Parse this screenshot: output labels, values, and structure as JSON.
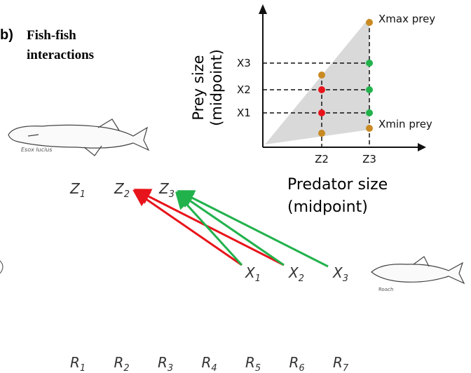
{
  "panel": {
    "label": "b)",
    "title_lines": [
      "Fish-fish",
      "interactions"
    ]
  },
  "species": {
    "predator": "Esox lucius",
    "prey": "Roach"
  },
  "predator_nodes": [
    {
      "symbol": "Z",
      "sub": "1"
    },
    {
      "symbol": "Z",
      "sub": "2"
    },
    {
      "symbol": "Z",
      "sub": "3"
    }
  ],
  "prey_nodes": [
    {
      "symbol": "X",
      "sub": "1"
    },
    {
      "symbol": "X",
      "sub": "2"
    },
    {
      "symbol": "X",
      "sub": "3"
    }
  ],
  "resource_nodes": [
    {
      "symbol": "R",
      "sub": "1"
    },
    {
      "symbol": "R",
      "sub": "2"
    },
    {
      "symbol": "R",
      "sub": "3"
    },
    {
      "symbol": "R",
      "sub": "4"
    },
    {
      "symbol": "R",
      "sub": "5"
    },
    {
      "symbol": "R",
      "sub": "6"
    },
    {
      "symbol": "R",
      "sub": "7"
    }
  ],
  "inset": {
    "y_axis_lines": [
      "Prey size",
      "(midpoint)"
    ],
    "x_axis_lines": [
      "Predator size",
      "(midpoint)"
    ],
    "y_labels": [
      "X3",
      "X2",
      "X1"
    ],
    "x_labels": [
      "Z2",
      "Z3"
    ],
    "xmax": "Xmax prey",
    "xmin": "Xmin prey"
  }
}
